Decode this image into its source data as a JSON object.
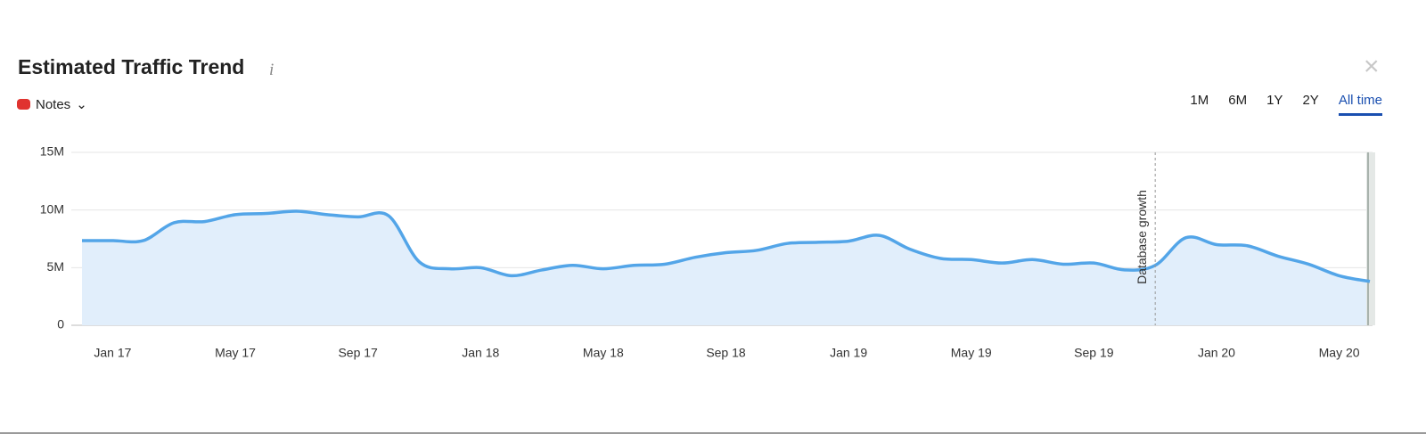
{
  "header": {
    "title": "Estimated Traffic Trend",
    "info": "i",
    "notes": "Notes",
    "close": "×"
  },
  "ranges": {
    "items": [
      "1M",
      "6M",
      "1Y",
      "2Y",
      "All time"
    ],
    "active": 4
  },
  "chart_data": {
    "type": "line",
    "categories": [
      null,
      "Jan 17",
      null,
      null,
      null,
      "May 17",
      null,
      null,
      null,
      "Sep 17",
      null,
      null,
      null,
      "Jan 18",
      null,
      null,
      null,
      "May 18",
      null,
      null,
      null,
      "Sep 18",
      null,
      null,
      null,
      "Jan 19",
      null,
      null,
      null,
      "May 19",
      null,
      null,
      null,
      "Sep 19",
      null,
      null,
      null,
      "Jan 20",
      null,
      null,
      null,
      "May 20",
      null
    ],
    "series": [
      {
        "color": "#53a5e8",
        "values": [
          7350000,
          7350000,
          7350000,
          8900000,
          9000000,
          9600000,
          9700000,
          9900000,
          9600000,
          9400000,
          9500000,
          5500000,
          4900000,
          5000000,
          4300000,
          4800000,
          5200000,
          4900000,
          5200000,
          5300000,
          5900000,
          6300000,
          6500000,
          7100000,
          7200000,
          7300000,
          7800000,
          6600000,
          5800000,
          5700000,
          5400000,
          5700000,
          5300000,
          5400000,
          4800000,
          5200000,
          7600000,
          7000000,
          6900000,
          6000000,
          5300000,
          4300000,
          3800000
        ]
      }
    ],
    "ylim": [
      0,
      15000000
    ],
    "yticks": [
      0,
      {
        "value": 5000000,
        "label": "5M"
      },
      {
        "value": 10000000,
        "label": "10M"
      },
      {
        "value": 15000000,
        "label": "15M"
      }
    ],
    "grid": true,
    "annotation": "Database growth"
  }
}
